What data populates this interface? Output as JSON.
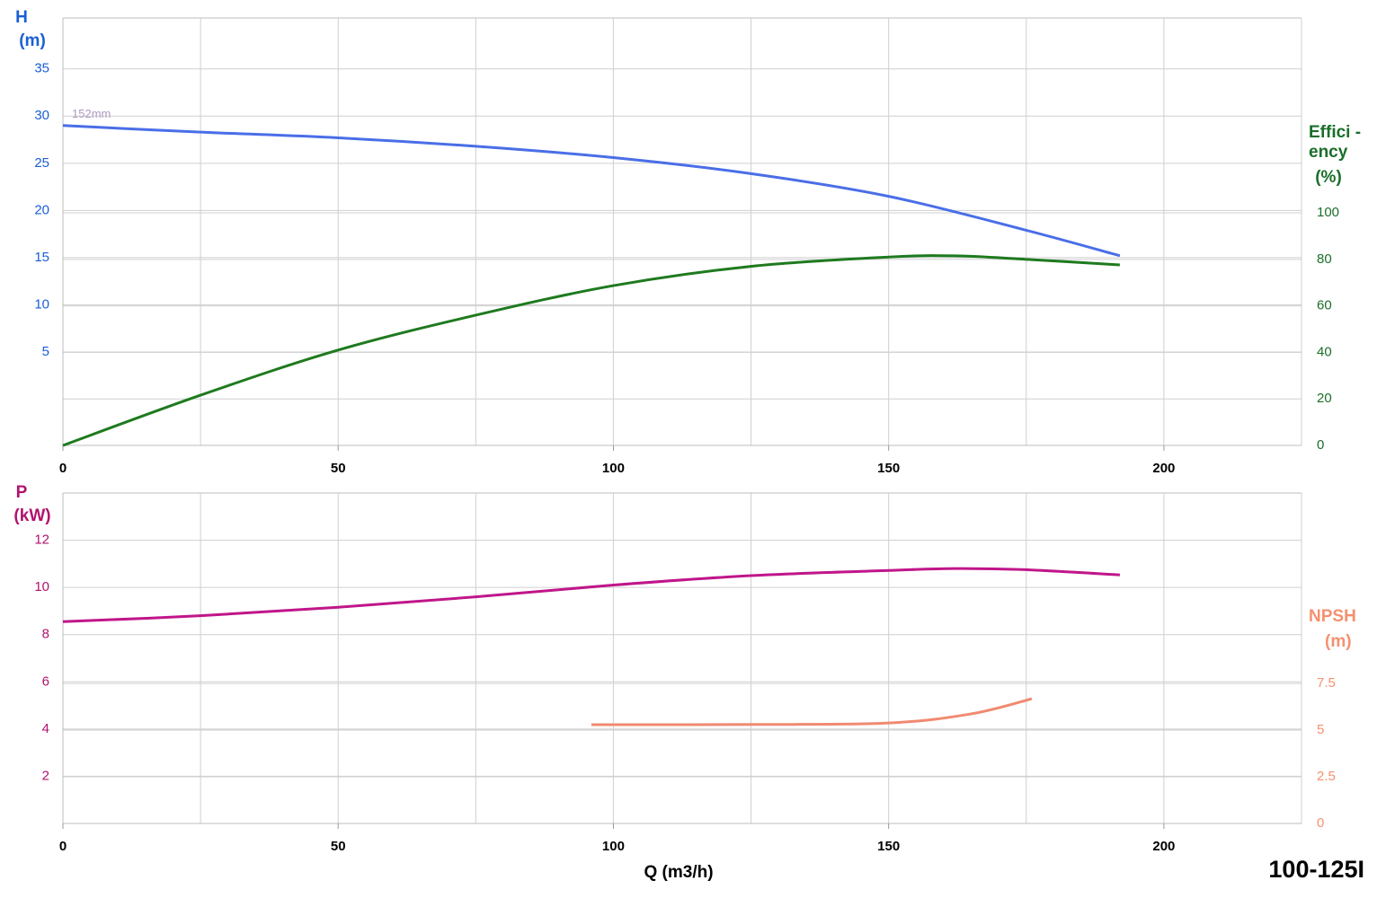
{
  "model": "100-125I",
  "chart_data": [
    {
      "type": "line",
      "ylabel": [
        "H",
        "(m)"
      ],
      "ylabel_color": "#1a5fd6",
      "y2label": [
        "Effici -",
        "ency",
        "(%)"
      ],
      "y2label_color": "#1a6e2a",
      "annotation": "152mm",
      "xlim": [
        0,
        225
      ],
      "xticks": [
        0,
        50,
        100,
        150,
        200
      ],
      "xgrid": [
        0,
        25,
        50,
        75,
        100,
        125,
        150,
        175,
        200,
        225
      ],
      "ylim": [
        -4.9,
        40.4
      ],
      "yticks": [
        5,
        10,
        15,
        20,
        25,
        30,
        35
      ],
      "y2lim": [
        0,
        183.8
      ],
      "y2ticks": [
        0,
        20,
        40,
        60,
        80,
        100
      ],
      "grid": true,
      "series": [
        {
          "name": "H",
          "color": "#4a6ee8",
          "axis": "y",
          "x": [
            0,
            25,
            50,
            75,
            100,
            125,
            150,
            175,
            192
          ],
          "values": [
            29.0,
            28.3,
            27.7,
            26.8,
            25.6,
            23.9,
            21.5,
            17.9,
            15.2
          ]
        },
        {
          "name": "Efficiency",
          "color": "#1e7a1e",
          "axis": "y2",
          "x": [
            0,
            25,
            50,
            75,
            100,
            125,
            150,
            162,
            175,
            192
          ],
          "values": [
            0,
            21.6,
            41,
            56,
            68.7,
            77,
            81,
            81.5,
            80,
            77.6
          ]
        }
      ]
    },
    {
      "type": "line",
      "ylabel": [
        "P",
        "(kW)"
      ],
      "ylabel_color": "#b0136e",
      "y2label": [
        "NPSH",
        "(m)"
      ],
      "y2label_color": "#f59070",
      "xlabel": "Q (m3/h)",
      "xlim": [
        0,
        225
      ],
      "xticks": [
        0,
        50,
        100,
        150,
        200
      ],
      "xgrid": [
        0,
        25,
        50,
        75,
        100,
        125,
        150,
        175,
        200,
        225
      ],
      "ylim": [
        0,
        14.0
      ],
      "yticks": [
        2,
        4,
        6,
        8,
        10,
        12
      ],
      "y2lim": [
        0,
        17.7
      ],
      "y2ticks": [
        0,
        2.5,
        5,
        7.5
      ],
      "grid": true,
      "series": [
        {
          "name": "P",
          "color": "#c0168a",
          "axis": "y",
          "x": [
            0,
            25,
            50,
            75,
            100,
            125,
            150,
            162,
            175,
            192
          ],
          "values": [
            8.55,
            8.8,
            9.16,
            9.6,
            10.1,
            10.5,
            10.72,
            10.8,
            10.75,
            10.53
          ]
        },
        {
          "name": "NPSH",
          "color": "#f08a70",
          "axis": "y2",
          "x": [
            96,
            125,
            150,
            165,
            176
          ],
          "values": [
            5.29,
            5.3,
            5.38,
            5.87,
            6.68
          ]
        }
      ]
    }
  ]
}
